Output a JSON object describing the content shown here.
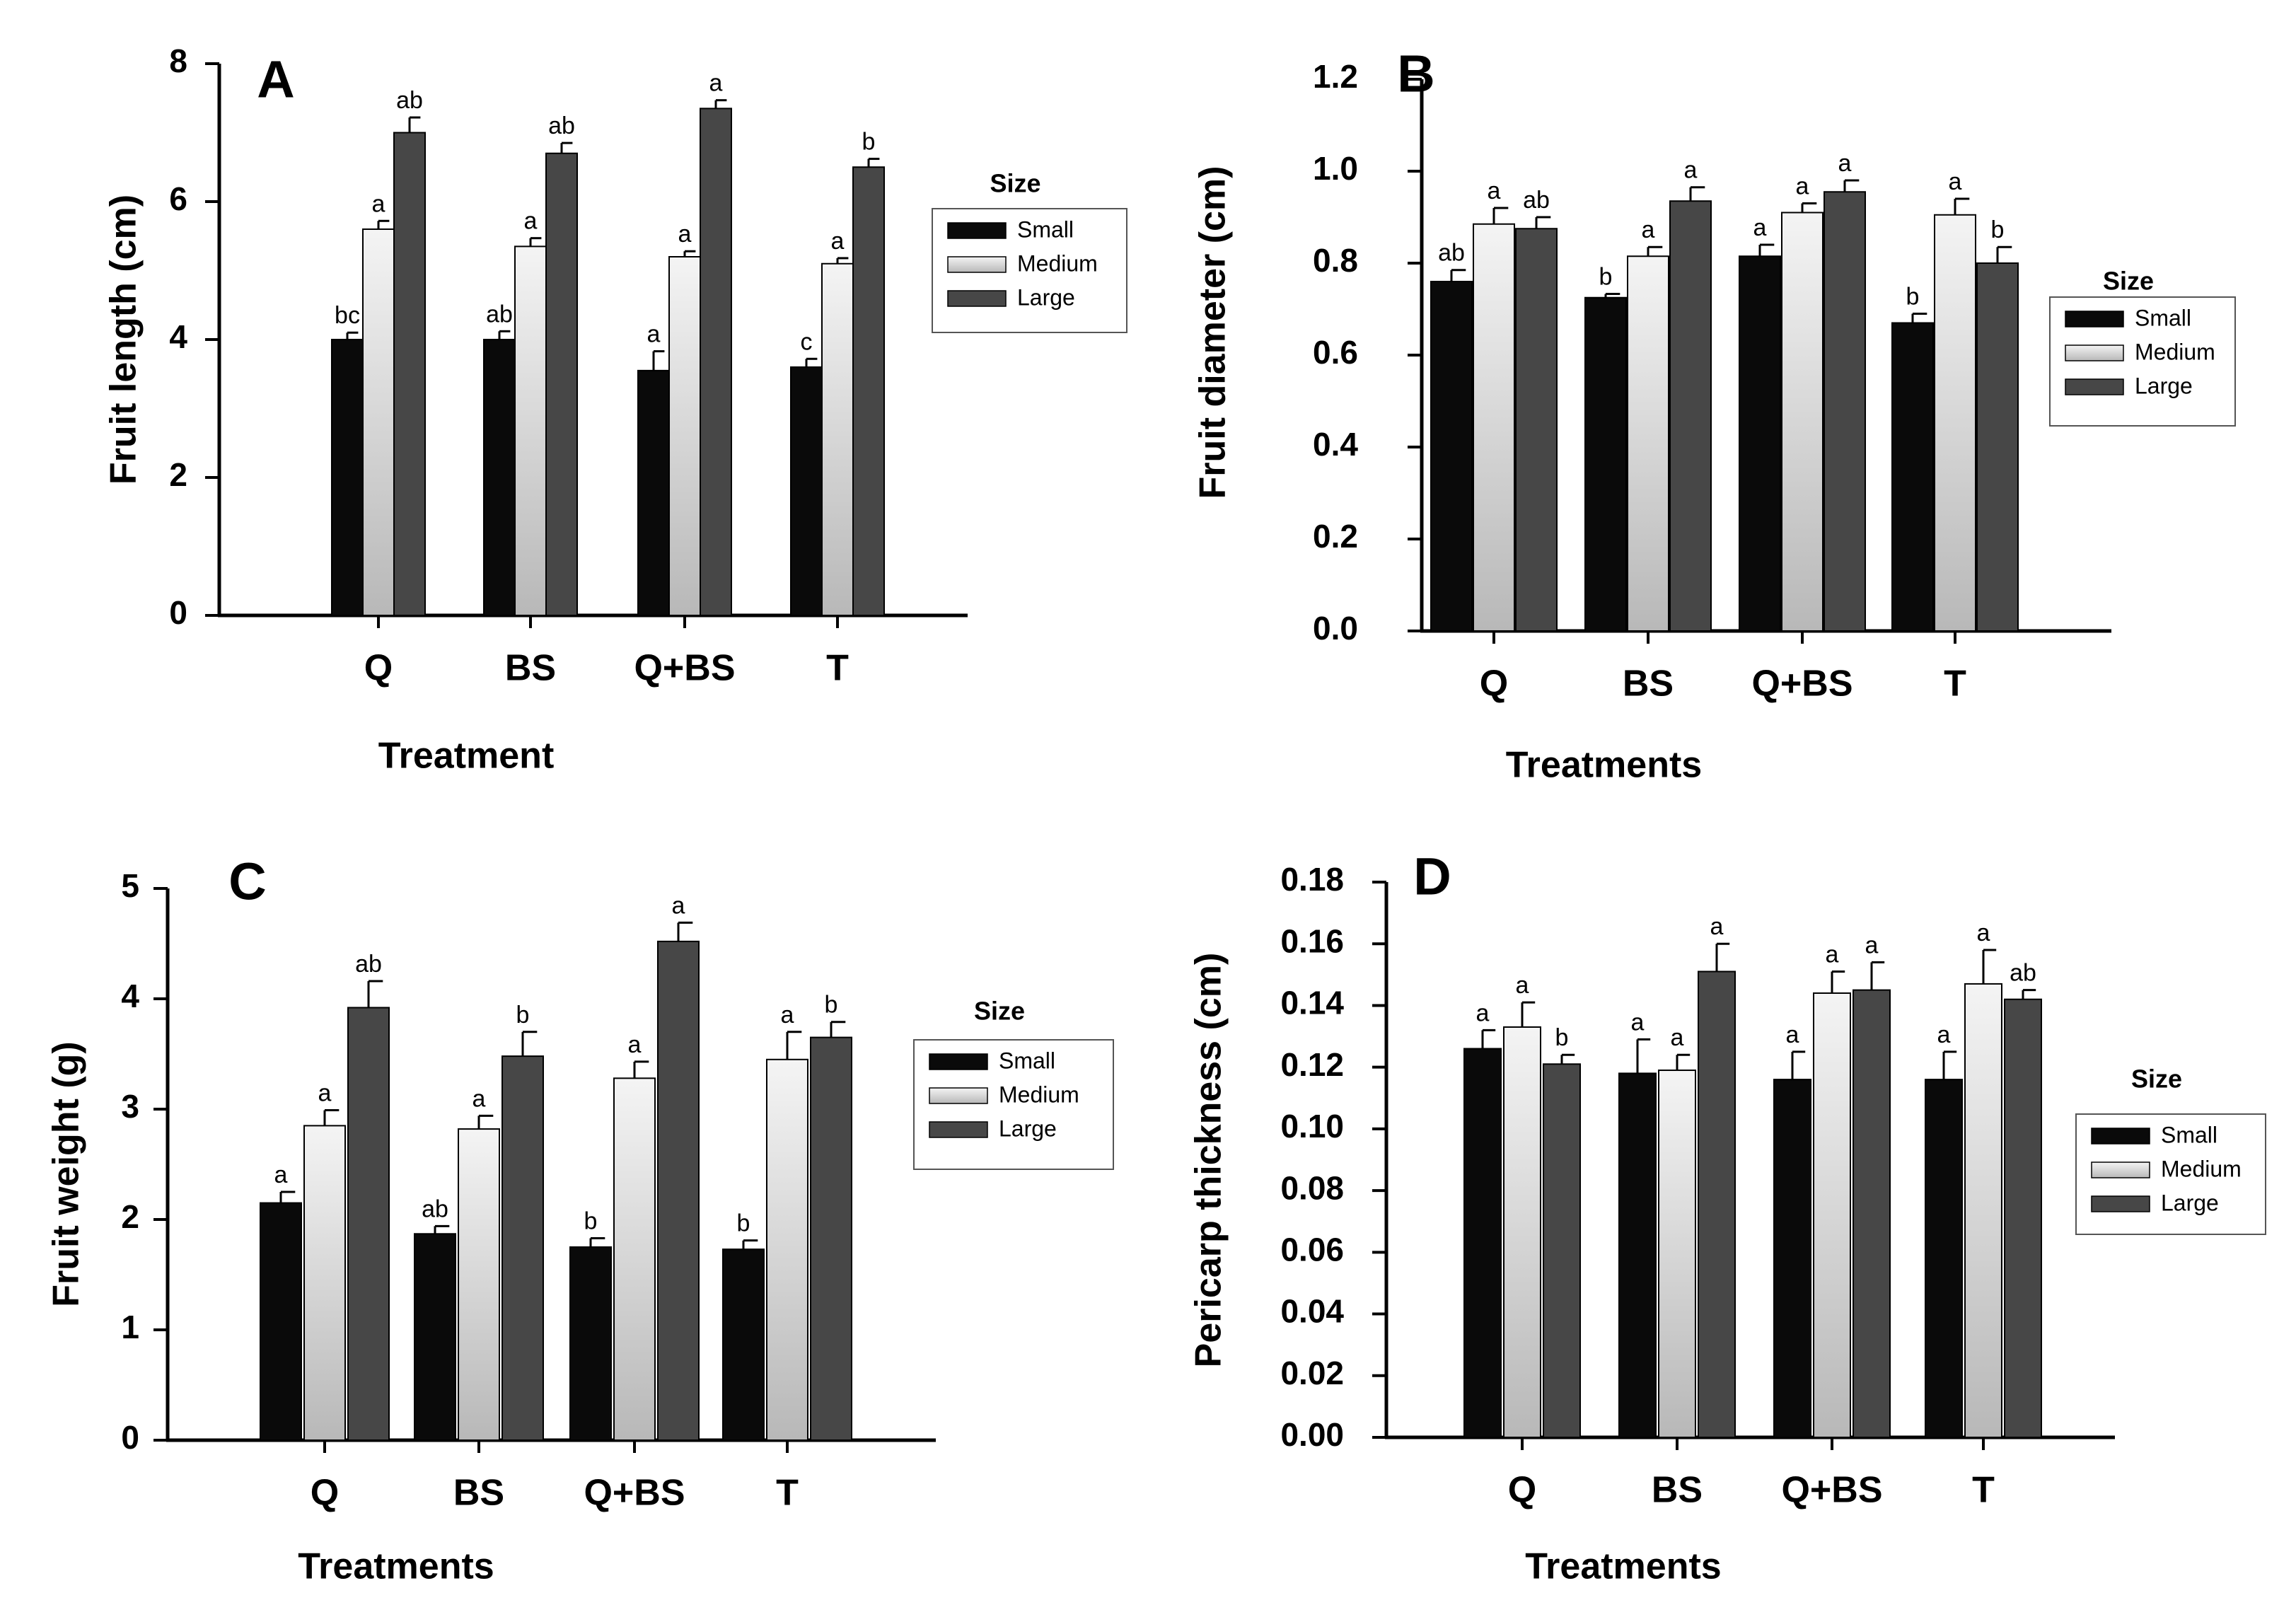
{
  "colors": {
    "small": "#0a0a0a",
    "medium_top": "#f4f4f4",
    "medium_bottom": "#b8b8b8",
    "large": "#474747",
    "axis": "#000000"
  },
  "chart_data": [
    {
      "panel": "A",
      "type": "bar",
      "xlabel": "Treatment",
      "ylabel": "Fruit length (cm)",
      "categories": [
        "Q",
        "BS",
        "Q+BS",
        "T"
      ],
      "ylim": [
        0,
        8
      ],
      "yticks": [
        "0",
        "2",
        "4",
        "6",
        "8"
      ],
      "ytick_values": [
        0,
        2,
        4,
        6,
        8
      ],
      "legend_title": "Size",
      "series": [
        {
          "name": "Small",
          "values": [
            4.0,
            4.0,
            3.55,
            3.6
          ],
          "errors": [
            0.1,
            0.12,
            0.28,
            0.12
          ],
          "labels": [
            "bc",
            "ab",
            "a",
            "c"
          ]
        },
        {
          "name": "Medium",
          "values": [
            5.6,
            5.35,
            5.2,
            5.1
          ],
          "errors": [
            0.12,
            0.12,
            0.08,
            0.08
          ],
          "labels": [
            "a",
            "a",
            "a",
            "a"
          ]
        },
        {
          "name": "Large",
          "values": [
            7.0,
            6.7,
            7.35,
            6.5
          ],
          "errors": [
            0.22,
            0.15,
            0.12,
            0.12
          ],
          "labels": [
            "ab",
            "ab",
            "a",
            "b"
          ]
        }
      ]
    },
    {
      "panel": "B",
      "type": "bar",
      "xlabel": "Treatments",
      "ylabel": "Fruit diameter (cm)",
      "categories": [
        "Q",
        "BS",
        "Q+BS",
        "T"
      ],
      "ylim": [
        0,
        1.2
      ],
      "yticks": [
        "0.0",
        "0.2",
        "0.4",
        "0.6",
        "0.8",
        "1.0",
        "1.2"
      ],
      "ytick_values": [
        0,
        0.2,
        0.4,
        0.6,
        0.8,
        1.0,
        1.2
      ],
      "legend_title": "Size",
      "series": [
        {
          "name": "Small",
          "values": [
            0.76,
            0.725,
            0.815,
            0.67
          ],
          "errors": [
            0.025,
            0.008,
            0.025,
            0.02
          ],
          "labels": [
            "ab",
            "b",
            "a",
            "b"
          ]
        },
        {
          "name": "Medium",
          "values": [
            0.885,
            0.815,
            0.91,
            0.905
          ],
          "errors": [
            0.035,
            0.02,
            0.02,
            0.035
          ],
          "labels": [
            "a",
            "a",
            "a",
            "a"
          ]
        },
        {
          "name": "Large",
          "values": [
            0.875,
            0.935,
            0.955,
            0.8
          ],
          "errors": [
            0.025,
            0.03,
            0.025,
            0.035
          ],
          "labels": [
            "ab",
            "a",
            "a",
            "b"
          ]
        }
      ]
    },
    {
      "panel": "C",
      "type": "bar",
      "xlabel": "Treatments",
      "ylabel": "Fruit weight (g)",
      "categories": [
        "Q",
        "BS",
        "Q+BS",
        "T"
      ],
      "ylim": [
        0,
        5
      ],
      "yticks": [
        "0",
        "1",
        "2",
        "3",
        "4",
        "5"
      ],
      "ytick_values": [
        0,
        1,
        2,
        3,
        4,
        5
      ],
      "legend_title": "Size",
      "series": [
        {
          "name": "Small",
          "values": [
            2.15,
            1.87,
            1.75,
            1.73
          ],
          "errors": [
            0.1,
            0.07,
            0.08,
            0.08
          ],
          "labels": [
            "a",
            "ab",
            "b",
            "b"
          ]
        },
        {
          "name": "Medium",
          "values": [
            2.85,
            2.82,
            3.28,
            3.45
          ],
          "errors": [
            0.14,
            0.12,
            0.15,
            0.25
          ],
          "labels": [
            "a",
            "a",
            "a",
            "a"
          ]
        },
        {
          "name": "Large",
          "values": [
            3.92,
            3.48,
            4.52,
            3.65
          ],
          "errors": [
            0.24,
            0.22,
            0.17,
            0.14
          ],
          "labels": [
            "ab",
            "b",
            "a",
            "b"
          ]
        }
      ]
    },
    {
      "panel": "D",
      "type": "bar",
      "xlabel": "Treatments",
      "ylabel": "Pericarp thickness (cm)",
      "categories": [
        "Q",
        "BS",
        "Q+BS",
        "T"
      ],
      "ylim": [
        0,
        0.18
      ],
      "yticks": [
        "0.00",
        "0.02",
        "0.04",
        "0.06",
        "0.08",
        "0.10",
        "0.12",
        "0.14",
        "0.16",
        "0.18"
      ],
      "ytick_values": [
        0,
        0.02,
        0.04,
        0.06,
        0.08,
        0.1,
        0.12,
        0.14,
        0.16,
        0.18
      ],
      "legend_title": "Size",
      "series": [
        {
          "name": "Small",
          "values": [
            0.126,
            0.118,
            0.116,
            0.116
          ],
          "errors": [
            0.006,
            0.011,
            0.009,
            0.009
          ],
          "labels": [
            "a",
            "a",
            "a",
            "a"
          ]
        },
        {
          "name": "Medium",
          "values": [
            0.133,
            0.119,
            0.144,
            0.147
          ],
          "errors": [
            0.008,
            0.005,
            0.007,
            0.011
          ],
          "labels": [
            "a",
            "a",
            "a",
            "a"
          ]
        },
        {
          "name": "Large",
          "values": [
            0.121,
            0.151,
            0.145,
            0.142
          ],
          "errors": [
            0.003,
            0.009,
            0.009,
            0.003
          ],
          "labels": [
            "b",
            "a",
            "a",
            "ab"
          ]
        }
      ]
    }
  ]
}
